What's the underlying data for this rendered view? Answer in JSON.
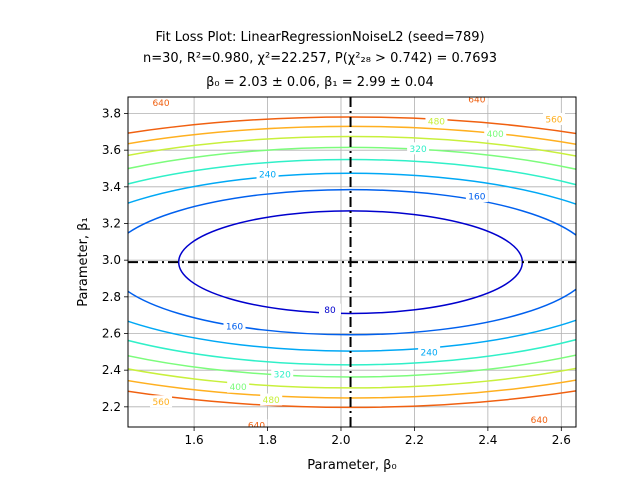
{
  "chart_data": {
    "type": "contour",
    "title": [
      "Fit Loss Plot: LinearRegressionNoiseL2 (seed=789)",
      "n=30, R²=0.980, χ²=22.257, P(χ²₂₈ > 0.742) = 0.7693",
      "β₀ = 2.03 ± 0.06, β₁ = 2.99 ± 0.04"
    ],
    "xlabel": "Parameter, β₀",
    "ylabel": "Parameter, β₁",
    "xlim": [
      1.42,
      2.64
    ],
    "ylim": [
      2.09,
      3.89
    ],
    "xticks": [
      1.6,
      1.8,
      2.0,
      2.2,
      2.4,
      2.6
    ],
    "xtick_labels": [
      "1.6",
      "1.8",
      "2.0",
      "2.2",
      "2.4",
      "2.6"
    ],
    "yticks": [
      2.2,
      2.4,
      2.6,
      2.8,
      3.0,
      3.2,
      3.4,
      3.6,
      3.8
    ],
    "ytick_labels": [
      "2.2",
      "2.4",
      "2.6",
      "2.8",
      "3.0",
      "3.2",
      "3.4",
      "3.6",
      "3.8"
    ],
    "grid": true,
    "best_fit": {
      "b0": 2.026,
      "b1": 2.989
    },
    "levels": [
      80,
      160,
      240,
      320,
      400,
      480,
      560,
      640
    ],
    "level_colors": [
      "#0000cd",
      "#0060ee",
      "#00a8f5",
      "#30f0c8",
      "#7cfc7c",
      "#c8f03c",
      "#ffb020",
      "#f06010"
    ],
    "contour_model": {
      "x_half_width_at_80": 0.468,
      "y_half_height_at_80": 0.28
    },
    "contour_labels": [
      {
        "level": 80,
        "text": "80",
        "b0": 1.97,
        "b1": 2.73
      },
      {
        "level": 160,
        "text": "160",
        "b0": 2.37,
        "b1": 3.35
      },
      {
        "level": 160,
        "text": "160",
        "b0": 1.71,
        "b1": 2.64
      },
      {
        "level": 240,
        "text": "240",
        "b0": 1.8,
        "b1": 3.47
      },
      {
        "level": 240,
        "text": "240",
        "b0": 2.24,
        "b1": 2.5
      },
      {
        "level": 320,
        "text": "320",
        "b0": 2.21,
        "b1": 3.61
      },
      {
        "level": 320,
        "text": "320",
        "b0": 1.84,
        "b1": 2.38
      },
      {
        "level": 400,
        "text": "400",
        "b0": 2.42,
        "b1": 3.69
      },
      {
        "level": 400,
        "text": "400",
        "b0": 1.72,
        "b1": 2.31
      },
      {
        "level": 480,
        "text": "480",
        "b0": 2.26,
        "b1": 3.76
      },
      {
        "level": 480,
        "text": "480",
        "b0": 1.81,
        "b1": 2.24
      },
      {
        "level": 560,
        "text": "560",
        "b0": 2.58,
        "b1": 3.77
      },
      {
        "level": 560,
        "text": "560",
        "b0": 1.51,
        "b1": 2.23
      },
      {
        "level": 640,
        "text": "640",
        "b0": 1.51,
        "b1": 3.86
      },
      {
        "level": 640,
        "text": "640",
        "b0": 2.54,
        "b1": 2.13
      },
      {
        "level": 640,
        "text": "640",
        "b0": 1.77,
        "b1": 2.1
      },
      {
        "level": 640,
        "text": "640",
        "b0": 2.37,
        "b1": 3.88
      }
    ]
  }
}
